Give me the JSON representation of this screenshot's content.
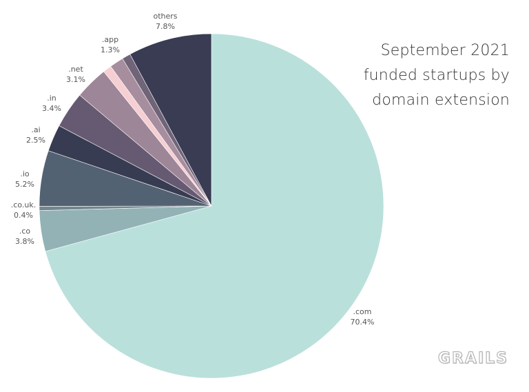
{
  "chart_data": {
    "type": "pie",
    "title_lines": [
      "September 2021",
      "funded startups by",
      "domain extension"
    ],
    "slices": [
      {
        "label": ".com",
        "value": 70.4,
        "display": "70.4%",
        "color": "#bae0dc"
      },
      {
        "label": ".co",
        "value": 3.8,
        "display": "3.8%",
        "color": "#93b2b5"
      },
      {
        "label": ".co.uk.",
        "value": 0.4,
        "display": "0.4%",
        "color": "#72868f"
      },
      {
        "label": ".io",
        "value": 5.2,
        "display": "5.2%",
        "color": "#536273"
      },
      {
        "label": ".ai",
        "value": 2.5,
        "display": "2.5%",
        "color": "#383c52"
      },
      {
        "label": ".in",
        "value": 3.4,
        "display": "3.4%",
        "color": "#665a72"
      },
      {
        "label": ".net",
        "value": 3.1,
        "display": "3.1%",
        "color": "#9c8697"
      },
      {
        "label": "",
        "value": 0.8,
        "display": "",
        "color": "#f6cfd3"
      },
      {
        "label": ".app",
        "value": 1.3,
        "display": "1.3%",
        "color": "#a78e9e"
      },
      {
        "label": "",
        "value": 0.8,
        "display": "",
        "color": "#6f6478"
      },
      {
        "label": "others",
        "value": 7.8,
        "display": "7.8%",
        "color": "#393c52"
      }
    ],
    "start": "top",
    "direction": "clockwise"
  },
  "branding": {
    "logo_text": "GRAILS"
  }
}
